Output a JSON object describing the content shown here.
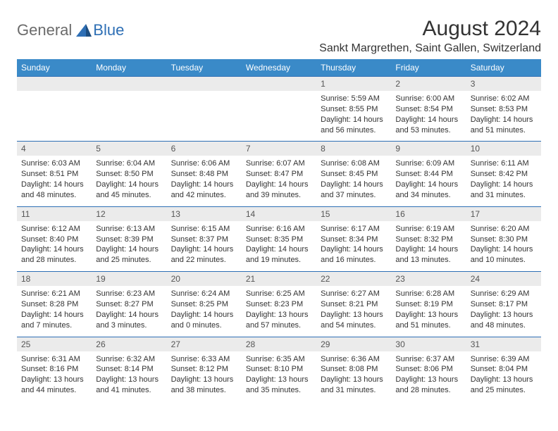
{
  "brand": {
    "general": "General",
    "blue": "Blue"
  },
  "title": "August 2024",
  "location": "Sankt Margrethen, Saint Gallen, Switzerland",
  "colors": {
    "header_bg": "#3a8ac8",
    "header_text": "#ffffff",
    "row_divider": "#2e6fb5",
    "daynum_bg": "#ebebeb",
    "text": "#333333",
    "logo_gray": "#6b6b6b",
    "logo_blue": "#2e6fb5"
  },
  "typography": {
    "title_fontsize": 30,
    "location_fontsize": 16,
    "header_fontsize": 12,
    "cell_fontsize": 11
  },
  "dayHeaders": [
    "Sunday",
    "Monday",
    "Tuesday",
    "Wednesday",
    "Thursday",
    "Friday",
    "Saturday"
  ],
  "weeks": [
    {
      "nums": [
        "",
        "",
        "",
        "",
        "1",
        "2",
        "3"
      ],
      "cells": [
        null,
        null,
        null,
        null,
        {
          "sunrise": "5:59 AM",
          "sunset": "8:55 PM",
          "daylight": "14 hours and 56 minutes."
        },
        {
          "sunrise": "6:00 AM",
          "sunset": "8:54 PM",
          "daylight": "14 hours and 53 minutes."
        },
        {
          "sunrise": "6:02 AM",
          "sunset": "8:53 PM",
          "daylight": "14 hours and 51 minutes."
        }
      ]
    },
    {
      "nums": [
        "4",
        "5",
        "6",
        "7",
        "8",
        "9",
        "10"
      ],
      "cells": [
        {
          "sunrise": "6:03 AM",
          "sunset": "8:51 PM",
          "daylight": "14 hours and 48 minutes."
        },
        {
          "sunrise": "6:04 AM",
          "sunset": "8:50 PM",
          "daylight": "14 hours and 45 minutes."
        },
        {
          "sunrise": "6:06 AM",
          "sunset": "8:48 PM",
          "daylight": "14 hours and 42 minutes."
        },
        {
          "sunrise": "6:07 AM",
          "sunset": "8:47 PM",
          "daylight": "14 hours and 39 minutes."
        },
        {
          "sunrise": "6:08 AM",
          "sunset": "8:45 PM",
          "daylight": "14 hours and 37 minutes."
        },
        {
          "sunrise": "6:09 AM",
          "sunset": "8:44 PM",
          "daylight": "14 hours and 34 minutes."
        },
        {
          "sunrise": "6:11 AM",
          "sunset": "8:42 PM",
          "daylight": "14 hours and 31 minutes."
        }
      ]
    },
    {
      "nums": [
        "11",
        "12",
        "13",
        "14",
        "15",
        "16",
        "17"
      ],
      "cells": [
        {
          "sunrise": "6:12 AM",
          "sunset": "8:40 PM",
          "daylight": "14 hours and 28 minutes."
        },
        {
          "sunrise": "6:13 AM",
          "sunset": "8:39 PM",
          "daylight": "14 hours and 25 minutes."
        },
        {
          "sunrise": "6:15 AM",
          "sunset": "8:37 PM",
          "daylight": "14 hours and 22 minutes."
        },
        {
          "sunrise": "6:16 AM",
          "sunset": "8:35 PM",
          "daylight": "14 hours and 19 minutes."
        },
        {
          "sunrise": "6:17 AM",
          "sunset": "8:34 PM",
          "daylight": "14 hours and 16 minutes."
        },
        {
          "sunrise": "6:19 AM",
          "sunset": "8:32 PM",
          "daylight": "14 hours and 13 minutes."
        },
        {
          "sunrise": "6:20 AM",
          "sunset": "8:30 PM",
          "daylight": "14 hours and 10 minutes."
        }
      ]
    },
    {
      "nums": [
        "18",
        "19",
        "20",
        "21",
        "22",
        "23",
        "24"
      ],
      "cells": [
        {
          "sunrise": "6:21 AM",
          "sunset": "8:28 PM",
          "daylight": "14 hours and 7 minutes."
        },
        {
          "sunrise": "6:23 AM",
          "sunset": "8:27 PM",
          "daylight": "14 hours and 3 minutes."
        },
        {
          "sunrise": "6:24 AM",
          "sunset": "8:25 PM",
          "daylight": "14 hours and 0 minutes."
        },
        {
          "sunrise": "6:25 AM",
          "sunset": "8:23 PM",
          "daylight": "13 hours and 57 minutes."
        },
        {
          "sunrise": "6:27 AM",
          "sunset": "8:21 PM",
          "daylight": "13 hours and 54 minutes."
        },
        {
          "sunrise": "6:28 AM",
          "sunset": "8:19 PM",
          "daylight": "13 hours and 51 minutes."
        },
        {
          "sunrise": "6:29 AM",
          "sunset": "8:17 PM",
          "daylight": "13 hours and 48 minutes."
        }
      ]
    },
    {
      "nums": [
        "25",
        "26",
        "27",
        "28",
        "29",
        "30",
        "31"
      ],
      "cells": [
        {
          "sunrise": "6:31 AM",
          "sunset": "8:16 PM",
          "daylight": "13 hours and 44 minutes."
        },
        {
          "sunrise": "6:32 AM",
          "sunset": "8:14 PM",
          "daylight": "13 hours and 41 minutes."
        },
        {
          "sunrise": "6:33 AM",
          "sunset": "8:12 PM",
          "daylight": "13 hours and 38 minutes."
        },
        {
          "sunrise": "6:35 AM",
          "sunset": "8:10 PM",
          "daylight": "13 hours and 35 minutes."
        },
        {
          "sunrise": "6:36 AM",
          "sunset": "8:08 PM",
          "daylight": "13 hours and 31 minutes."
        },
        {
          "sunrise": "6:37 AM",
          "sunset": "8:06 PM",
          "daylight": "13 hours and 28 minutes."
        },
        {
          "sunrise": "6:39 AM",
          "sunset": "8:04 PM",
          "daylight": "13 hours and 25 minutes."
        }
      ]
    }
  ],
  "labels": {
    "sunrise": "Sunrise: ",
    "sunset": "Sunset: ",
    "daylight": "Daylight: "
  }
}
